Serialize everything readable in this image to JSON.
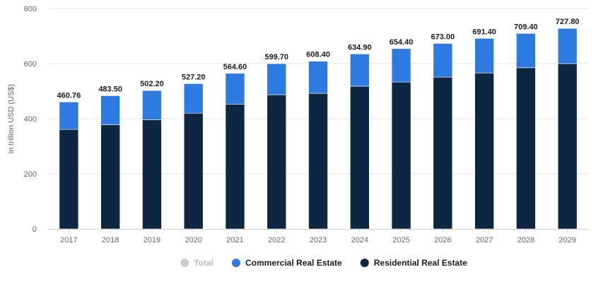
{
  "chart_data": {
    "type": "bar",
    "stacked": true,
    "ylabel": "in trillion USD (US$)",
    "ylim": [
      0,
      800
    ],
    "yticks": [
      0,
      200,
      400,
      600,
      800
    ],
    "categories": [
      "2017",
      "2018",
      "2019",
      "2020",
      "2021",
      "2022",
      "2023",
      "2024",
      "2025",
      "2026",
      "2027",
      "2028",
      "2029"
    ],
    "totals": [
      460.76,
      483.5,
      502.2,
      527.2,
      564.6,
      599.7,
      608.4,
      634.9,
      654.4,
      673.0,
      691.4,
      709.4,
      727.8
    ],
    "total_labels": [
      "460.76",
      "483.50",
      "502.20",
      "527.20",
      "564.60",
      "599.70",
      "608.40",
      "634.90",
      "654.40",
      "673.00",
      "691.40",
      "709.40",
      "727.80"
    ],
    "series": [
      {
        "name": "Residential Real Estate",
        "color": "#0e2740",
        "values": [
          361,
          378,
          396,
          420,
          453,
          487,
          492,
          518,
          533,
          551,
          566,
          585,
          600
        ]
      },
      {
        "name": "Commercial Real Estate",
        "color": "#2d7be0",
        "values": [
          99.76,
          105.5,
          106.2,
          107.2,
          111.6,
          112.7,
          116.4,
          116.9,
          121.4,
          122.0,
          125.4,
          124.4,
          127.8
        ]
      }
    ],
    "legend": {
      "position": "bottom-center",
      "items": [
        {
          "name": "Total",
          "color": "#cccccc",
          "hidden": true
        },
        {
          "name": "Commercial Real Estate",
          "color": "#2d7be0",
          "hidden": false
        },
        {
          "name": "Residential Real Estate",
          "color": "#0e2740",
          "hidden": false
        }
      ]
    },
    "grid": true
  }
}
